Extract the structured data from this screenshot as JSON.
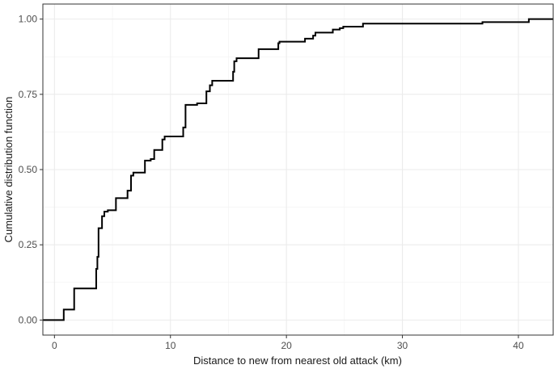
{
  "chart_data": {
    "type": "line",
    "subtype": "step (ECDF)",
    "title": "",
    "xlabel": "Distance to new from nearest old attack (km)",
    "ylabel": "Cumulative distribution function",
    "xlim": [
      -1.0,
      43.0
    ],
    "ylim": [
      -0.05,
      1.05
    ],
    "x_ticks": [
      0,
      10,
      20,
      30,
      40
    ],
    "y_ticks": [
      0.0,
      0.25,
      0.5,
      0.75,
      1.0
    ],
    "x_tick_labels": [
      "0",
      "10",
      "20",
      "30",
      "40"
    ],
    "y_tick_labels": [
      "0.00",
      "0.25",
      "0.50",
      "0.75",
      "1.00"
    ],
    "grid": true,
    "line_color": "#000000",
    "x": [
      -1.0,
      0.8,
      1.7,
      3.6,
      3.7,
      3.8,
      4.1,
      4.3,
      4.6,
      5.3,
      6.3,
      6.6,
      6.8,
      7.8,
      8.3,
      8.6,
      9.3,
      9.5,
      11.1,
      11.3,
      12.3,
      12.5,
      13.1,
      13.4,
      13.6,
      15.4,
      15.5,
      15.7,
      17.6,
      19.3,
      19.4,
      21.6,
      22.3,
      22.5,
      24.0,
      24.6,
      24.9,
      26.6,
      36.9,
      40.9
    ],
    "y": [
      0.0,
      0.035,
      0.105,
      0.17,
      0.21,
      0.305,
      0.345,
      0.36,
      0.365,
      0.405,
      0.43,
      0.48,
      0.49,
      0.53,
      0.535,
      0.565,
      0.6,
      0.61,
      0.64,
      0.715,
      0.72,
      0.72,
      0.76,
      0.78,
      0.795,
      0.825,
      0.86,
      0.87,
      0.9,
      0.92,
      0.925,
      0.935,
      0.945,
      0.955,
      0.965,
      0.97,
      0.975,
      0.985,
      0.99,
      1.0
    ]
  }
}
